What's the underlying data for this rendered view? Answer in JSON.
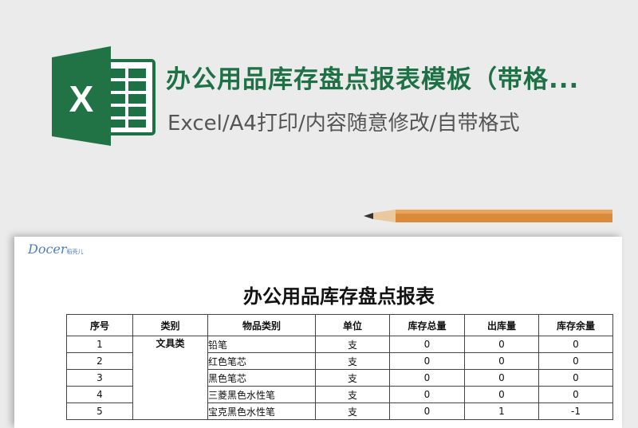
{
  "banner": {
    "title": "办公用品库存盘点报表模板（带格...",
    "subtitle": "Excel/A4打印/内容随意修改/自带格式",
    "icon": "excel-icon",
    "accent": "#1e7145"
  },
  "logo": {
    "text": "Docer",
    "sub": "稻壳儿"
  },
  "doc": {
    "title": "办公用品库存盘点报表",
    "headers": [
      "序号",
      "类别",
      "物品类别",
      "单位",
      "库存总量",
      "出库量",
      "库存余量"
    ],
    "category": "文具类",
    "rows": [
      [
        "1",
        "铅笔",
        "支",
        "0",
        "0",
        "0"
      ],
      [
        "2",
        "红色笔芯",
        "支",
        "0",
        "0",
        "0"
      ],
      [
        "3",
        "黑色笔芯",
        "支",
        "0",
        "0",
        "0"
      ],
      [
        "4",
        "三菱黑色水性笔",
        "支",
        "0",
        "0",
        "0"
      ],
      [
        "5",
        "宝克黑色水性笔",
        "支",
        "0",
        "1",
        "-1"
      ]
    ]
  }
}
